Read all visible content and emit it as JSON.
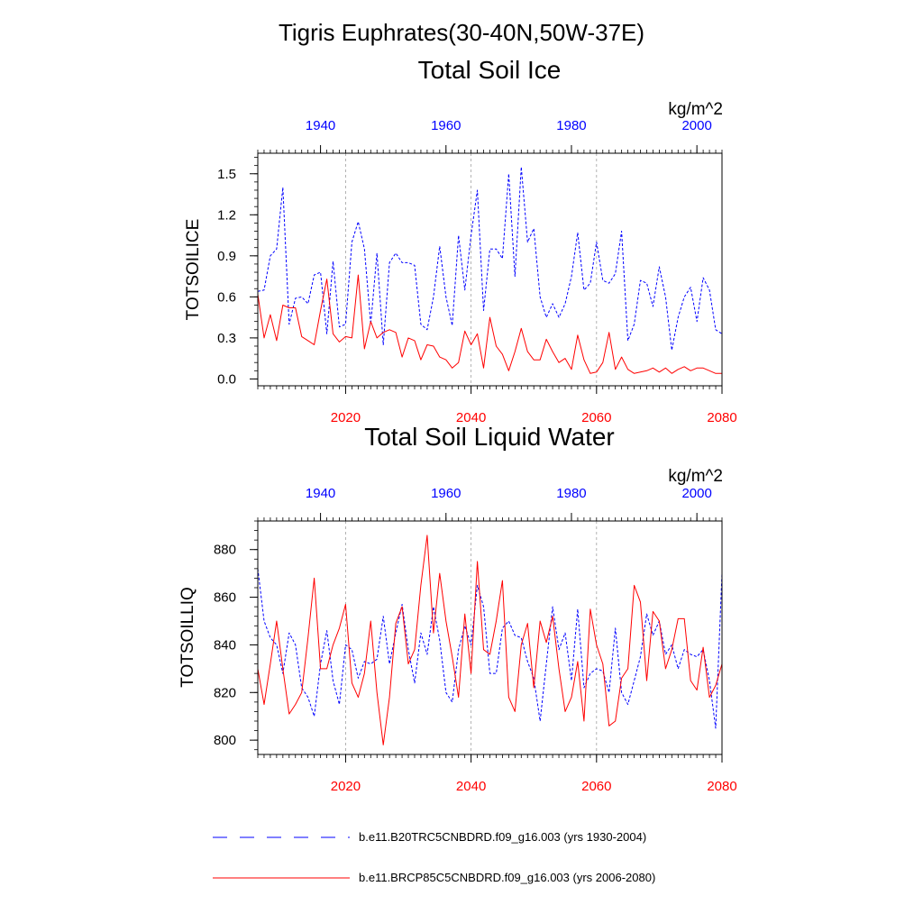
{
  "figure_title": "Tigris Euphrates(30-40N,50W-37E)",
  "colors": {
    "historical": "#0000ff",
    "future": "#ff0000",
    "axis": "#000000",
    "grid": "#a0a0a0"
  },
  "legend": [
    {
      "label": "b.e11.B20TRC5CNBDRD.f09_g16.003 (yrs 1930-2004)",
      "color": "#0000ff",
      "style": "dashed"
    },
    {
      "label": "b.e11.BRCP85C5CNBDRD.f09_g16.003 (yrs 2006-2080)",
      "color": "#ff0000",
      "style": "solid"
    }
  ],
  "chart_data": [
    {
      "type": "line",
      "title": "Total Soil Ice",
      "units": "kg/m^2",
      "ylabel": "TOTSOILICE",
      "ylim": [
        -0.05,
        1.65
      ],
      "yticks": [
        0.0,
        0.3,
        0.6,
        0.9,
        1.2,
        1.5
      ],
      "ytick_labels": [
        "0.0",
        "0.3",
        "0.6",
        "0.9",
        "1.2",
        "1.5"
      ],
      "bottom_axis": {
        "xlim": [
          2006,
          2080
        ],
        "ticks": [
          2020,
          2040,
          2060,
          2080
        ],
        "labels": [
          "2020",
          "2040",
          "2060",
          "2080"
        ],
        "color": "#ff0000"
      },
      "top_axis": {
        "xlim": [
          1930,
          2004
        ],
        "ticks": [
          1940,
          1960,
          1980,
          2000
        ],
        "labels": [
          "1940",
          "1960",
          "1980",
          "2000"
        ],
        "color": "#0000ff"
      },
      "grid_x": [
        2020,
        2040,
        2060
      ],
      "series": [
        {
          "name": "b.e11.B20TRC5CNBDRD.f09_g16.003 (yrs 1930-2004)",
          "axis": "top",
          "color": "#0000ff",
          "style": "dashed",
          "start": 1930,
          "values": [
            0.64,
            0.65,
            0.9,
            0.95,
            1.4,
            0.4,
            0.59,
            0.6,
            0.55,
            0.76,
            0.78,
            0.33,
            0.86,
            0.38,
            0.4,
            1.0,
            1.15,
            0.95,
            0.4,
            0.92,
            0.25,
            0.85,
            0.92,
            0.85,
            0.85,
            0.83,
            0.4,
            0.36,
            0.6,
            0.97,
            0.6,
            0.39,
            1.05,
            0.65,
            1.05,
            1.38,
            0.5,
            0.95,
            0.95,
            0.88,
            1.5,
            0.75,
            1.55,
            1.0,
            1.1,
            0.6,
            0.45,
            0.55,
            0.45,
            0.55,
            0.75,
            1.07,
            0.65,
            0.7,
            1.0,
            0.72,
            0.7,
            0.77,
            1.08,
            0.28,
            0.4,
            0.72,
            0.7,
            0.53,
            0.82,
            0.6,
            0.21,
            0.45,
            0.6,
            0.67,
            0.42,
            0.74,
            0.65,
            0.36,
            0.33
          ]
        },
        {
          "name": "b.e11.BRCP85C5CNBDRD.f09_g16.003 (yrs 2006-2080)",
          "axis": "bottom",
          "color": "#ff0000",
          "style": "solid",
          "start": 2006,
          "values": [
            0.62,
            0.3,
            0.47,
            0.28,
            0.54,
            0.52,
            0.52,
            0.31,
            0.28,
            0.25,
            0.5,
            0.73,
            0.33,
            0.27,
            0.31,
            0.3,
            0.76,
            0.22,
            0.42,
            0.3,
            0.34,
            0.36,
            0.34,
            0.16,
            0.3,
            0.28,
            0.14,
            0.25,
            0.24,
            0.16,
            0.14,
            0.08,
            0.12,
            0.35,
            0.25,
            0.33,
            0.08,
            0.45,
            0.24,
            0.18,
            0.06,
            0.2,
            0.37,
            0.2,
            0.14,
            0.14,
            0.29,
            0.2,
            0.12,
            0.15,
            0.07,
            0.32,
            0.14,
            0.04,
            0.05,
            0.12,
            0.34,
            0.07,
            0.16,
            0.07,
            0.04,
            0.05,
            0.06,
            0.08,
            0.05,
            0.08,
            0.04,
            0.07,
            0.09,
            0.06,
            0.08,
            0.08,
            0.06,
            0.04,
            0.04
          ]
        }
      ]
    },
    {
      "type": "line",
      "title": "Total Soil Liquid Water",
      "units": "kg/m^2",
      "ylabel": "TOTSOILLIQ",
      "ylim": [
        794,
        892
      ],
      "yticks": [
        800,
        820,
        840,
        860,
        880
      ],
      "ytick_labels": [
        "800",
        "820",
        "840",
        "860",
        "880"
      ],
      "bottom_axis": {
        "xlim": [
          2006,
          2080
        ],
        "ticks": [
          2020,
          2040,
          2060,
          2080
        ],
        "labels": [
          "2020",
          "2040",
          "2060",
          "2080"
        ],
        "color": "#ff0000"
      },
      "top_axis": {
        "xlim": [
          1930,
          2004
        ],
        "ticks": [
          1940,
          1960,
          1980,
          2000
        ],
        "labels": [
          "1940",
          "1960",
          "1980",
          "2000"
        ],
        "color": "#0000ff"
      },
      "grid_x": [
        2020,
        2040,
        2060
      ],
      "series": [
        {
          "name": "b.e11.B20TRC5CNBDRD.f09_g16.003 (yrs 1930-2004)",
          "axis": "top",
          "color": "#0000ff",
          "style": "dashed",
          "start": 1930,
          "values": [
            872,
            850,
            843,
            840,
            828,
            845,
            840,
            822,
            818,
            810,
            832,
            846,
            825,
            815,
            840,
            838,
            826,
            833,
            832,
            834,
            852,
            832,
            845,
            857,
            838,
            824,
            845,
            836,
            856,
            842,
            820,
            816,
            838,
            848,
            840,
            865,
            856,
            828,
            828,
            847,
            850,
            844,
            843,
            833,
            826,
            808,
            832,
            856,
            838,
            845,
            825,
            855,
            822,
            828,
            830,
            829,
            820,
            847,
            820,
            815,
            825,
            835,
            853,
            844,
            850,
            836,
            840,
            830,
            838,
            836,
            835,
            838,
            825,
            805,
            870
          ]
        },
        {
          "name": "b.e11.BRCP85C5CNBDRD.f09_g16.003 (yrs 2006-2080)",
          "axis": "bottom",
          "color": "#ff0000",
          "style": "solid",
          "start": 2006,
          "values": [
            830,
            815,
            832,
            850,
            830,
            811,
            815,
            820,
            843,
            868,
            830,
            830,
            840,
            847,
            857,
            824,
            818,
            828,
            850,
            820,
            798,
            818,
            849,
            856,
            832,
            838,
            865,
            886,
            845,
            870,
            850,
            835,
            818,
            853,
            828,
            875,
            838,
            836,
            850,
            867,
            818,
            812,
            840,
            849,
            822,
            850,
            841,
            852,
            830,
            812,
            818,
            833,
            808,
            855,
            840,
            832,
            806,
            808,
            826,
            830,
            865,
            858,
            825,
            854,
            850,
            830,
            838,
            851,
            851,
            825,
            821,
            839,
            818,
            823,
            832
          ]
        }
      ]
    }
  ]
}
